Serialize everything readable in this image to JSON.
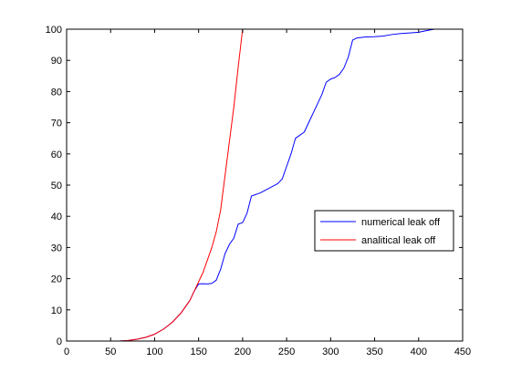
{
  "chart_data": {
    "type": "line",
    "title": "",
    "xlabel": "",
    "ylabel": "",
    "xlim": [
      0,
      450
    ],
    "ylim": [
      0,
      100
    ],
    "x_ticks": [
      0,
      50,
      100,
      150,
      200,
      250,
      300,
      350,
      400,
      450
    ],
    "y_ticks": [
      0,
      10,
      20,
      30,
      40,
      50,
      60,
      70,
      80,
      90,
      100
    ],
    "x_tick_labels": [
      "0",
      "50",
      "100",
      "150",
      "200",
      "250",
      "300",
      "350",
      "400",
      "450"
    ],
    "y_tick_labels": [
      "0",
      "10",
      "20",
      "30",
      "40",
      "50",
      "60",
      "70",
      "80",
      "90",
      "100"
    ],
    "grid": false,
    "legend_position": "right",
    "series": [
      {
        "name": "numerical leak off",
        "color": "#0000ff",
        "x": [
          0,
          60,
          70,
          80,
          90,
          100,
          110,
          120,
          130,
          140,
          145,
          150,
          155,
          160,
          165,
          170,
          175,
          180,
          185,
          190,
          195,
          200,
          205,
          210,
          220,
          230,
          240,
          245,
          250,
          255,
          260,
          265,
          270,
          275,
          280,
          285,
          290,
          295,
          300,
          305,
          310,
          315,
          320,
          325,
          330,
          340,
          350,
          360,
          370,
          380,
          390,
          400,
          410,
          418
        ],
        "y": [
          0,
          0,
          0.2,
          0.6,
          1.2,
          2.2,
          3.8,
          6,
          9,
          13,
          16,
          18.3,
          18.4,
          18.3,
          18.5,
          19.5,
          23,
          28,
          31,
          33,
          37.5,
          38,
          41,
          46.5,
          47.5,
          49,
          50.5,
          52,
          56,
          60,
          65,
          66,
          67,
          70,
          73,
          76,
          79,
          83,
          84,
          84.5,
          85.5,
          87.5,
          91,
          96.5,
          97.2,
          97.5,
          97.6,
          97.8,
          98.3,
          98.6,
          98.8,
          99,
          99.6,
          100
        ]
      },
      {
        "name": "analitical leak off",
        "color": "#ff0000",
        "x": [
          0,
          60,
          70,
          80,
          90,
          100,
          110,
          120,
          130,
          140,
          145,
          150,
          155,
          160,
          165,
          170,
          175,
          180,
          185,
          190,
          195,
          200
        ],
        "y": [
          0,
          0,
          0.2,
          0.6,
          1.2,
          2.2,
          3.8,
          6,
          9,
          13,
          16,
          19,
          22,
          26,
          30,
          35,
          42,
          53,
          64,
          75,
          88,
          100
        ]
      }
    ]
  }
}
